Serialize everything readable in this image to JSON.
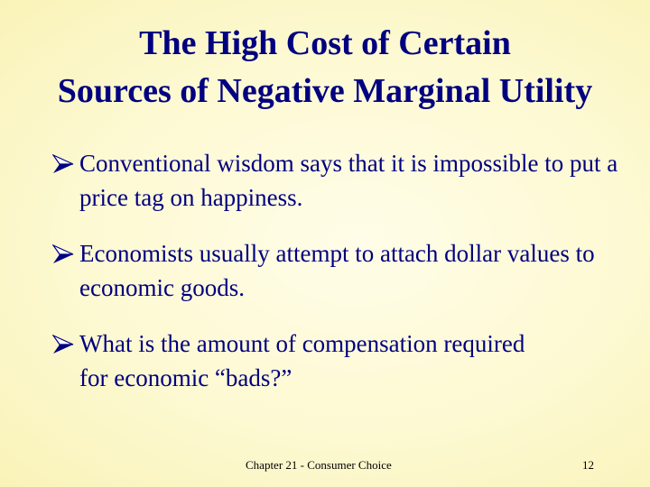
{
  "slide": {
    "title_lines": [
      "The High Cost of Certain",
      "Sources of Negative Marginal Utility"
    ],
    "bullets": [
      {
        "icon": "arrow-bullet-icon",
        "text": "Conventional wisdom says that it is impossible to put a price tag on happiness."
      },
      {
        "icon": "arrow-bullet-icon",
        "text": "Economists usually attempt to attach dollar values to economic goods."
      },
      {
        "icon": "arrow-bullet-icon",
        "text": "What is the amount of compensation required for economic “bads?”"
      }
    ],
    "footer": {
      "chapter": "Chapter 21 - Consumer Choice",
      "page_number": "12"
    },
    "colors": {
      "text": "#000080",
      "background": "#fdf9d2"
    }
  }
}
